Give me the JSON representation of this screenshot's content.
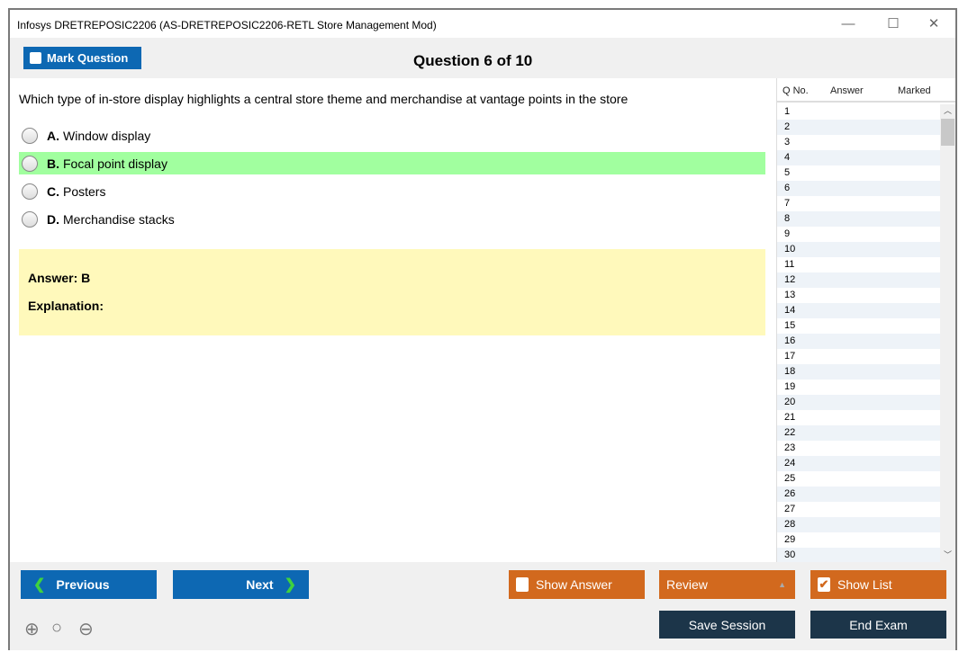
{
  "window": {
    "title": "Infosys DRETREPOSIC2206 (AS-DRETREPOSIC2206-RETL Store Management Mod)",
    "minimize": "—",
    "maximize": "☐",
    "close": "✕"
  },
  "toolbar": {
    "mark_label": "Mark Question",
    "question_counter": "Question 6 of 10"
  },
  "question": {
    "text": "Which type of in-store display highlights a central store theme and merchandise at vantage points in the store",
    "options": [
      {
        "letter": "A.",
        "text": "Window display"
      },
      {
        "letter": "B.",
        "text": "Focal point display",
        "selected": true
      },
      {
        "letter": "C.",
        "text": "Posters"
      },
      {
        "letter": "D.",
        "text": "Merchandise stacks"
      }
    ],
    "answer": "Answer: B",
    "explanation": "Explanation:",
    "highlight_color": "#a1ff9f"
  },
  "sidebar": {
    "headers": [
      "Q No.",
      "Answer",
      "Marked"
    ],
    "rows": [
      "1",
      "2",
      "3",
      "4",
      "5",
      "6",
      "7",
      "8",
      "9",
      "10",
      "11",
      "12",
      "13",
      "14",
      "15",
      "16",
      "17",
      "18",
      "19",
      "20",
      "21",
      "22",
      "23",
      "24",
      "25",
      "26",
      "27",
      "28",
      "29",
      "30"
    ]
  },
  "footer": {
    "previous": "Previous",
    "next": "Next",
    "show_answer": "Show Answer",
    "review": "Review",
    "show_list": "Show List",
    "save_session": "Save Session",
    "end_exam": "End Exam"
  },
  "colors": {
    "blue": "#0d68b3",
    "orange": "#d2691e",
    "dark": "#1c3549"
  }
}
